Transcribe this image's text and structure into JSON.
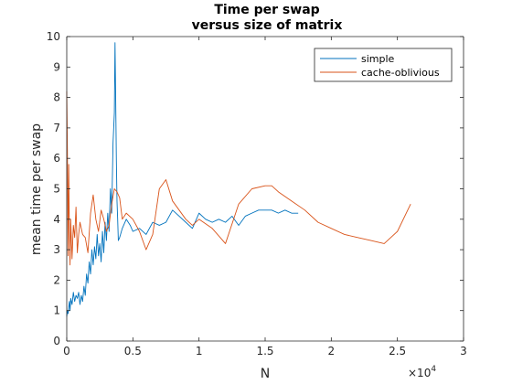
{
  "chart_data": {
    "type": "line",
    "title": [
      "Time per swap",
      "versus size of matrix"
    ],
    "xlabel": "N",
    "ylabel": "mean time per swap",
    "x_exponent_label": "×10",
    "x_exponent_power": "4",
    "xlim": [
      0,
      30000
    ],
    "ylim": [
      0,
      10
    ],
    "x_ticks": [
      0,
      5000,
      10000,
      15000,
      20000,
      25000,
      30000
    ],
    "x_tick_labels": [
      "0",
      "0.5",
      "1",
      "1.5",
      "2",
      "2.5",
      "3"
    ],
    "y_ticks": [
      0,
      1,
      2,
      3,
      4,
      5,
      6,
      7,
      8,
      9,
      10
    ],
    "y_tick_labels": [
      "0",
      "1",
      "2",
      "3",
      "4",
      "5",
      "6",
      "7",
      "8",
      "9",
      "10"
    ],
    "grid": false,
    "legend_position": "top-right",
    "series": [
      {
        "name": "simple",
        "color": "#0072bd",
        "x": [
          0,
          50,
          100,
          150,
          200,
          250,
          300,
          400,
          500,
          600,
          700,
          800,
          900,
          1000,
          1100,
          1200,
          1300,
          1400,
          1500,
          1600,
          1700,
          1800,
          1900,
          2000,
          2100,
          2200,
          2300,
          2400,
          2500,
          2600,
          2700,
          2800,
          2900,
          3000,
          3100,
          3200,
          3300,
          3400,
          3500,
          3600,
          3650,
          3700,
          3750,
          3800,
          3850,
          3900,
          4000,
          4200,
          4500,
          4800,
          5000,
          5500,
          6000,
          6500,
          7000,
          7500,
          8000,
          8500,
          9000,
          9500,
          10000,
          10500,
          11000,
          11500,
          12000,
          12500,
          13000,
          13500,
          14000,
          14500,
          15000,
          15500,
          16000,
          16500,
          17000,
          17500
        ],
        "y": [
          0.8,
          1.0,
          0.9,
          1.1,
          1.3,
          1.0,
          1.4,
          1.2,
          1.6,
          1.3,
          1.5,
          1.4,
          1.6,
          1.2,
          1.5,
          1.3,
          1.8,
          1.5,
          2.2,
          1.9,
          2.6,
          2.2,
          3.0,
          2.5,
          3.1,
          2.7,
          3.5,
          2.8,
          3.2,
          2.6,
          3.6,
          2.9,
          3.9,
          3.3,
          4.2,
          3.6,
          5.0,
          4.2,
          6.5,
          7.5,
          9.8,
          8.0,
          6.0,
          4.6,
          4.0,
          3.3,
          3.4,
          3.7,
          4.0,
          3.8,
          3.6,
          3.7,
          3.5,
          3.9,
          3.8,
          3.9,
          4.3,
          4.1,
          3.9,
          3.7,
          4.2,
          4.0,
          3.9,
          4.0,
          3.9,
          4.1,
          3.8,
          4.1,
          4.2,
          4.3,
          4.3,
          4.3,
          4.2,
          4.3,
          4.2,
          4.2
        ]
      },
      {
        "name": "cache-oblivious",
        "color": "#d95319",
        "x": [
          0,
          50,
          100,
          150,
          200,
          250,
          300,
          400,
          500,
          600,
          700,
          800,
          900,
          1000,
          1200,
          1400,
          1600,
          1800,
          2000,
          2200,
          2400,
          2600,
          2800,
          3000,
          3200,
          3400,
          3600,
          3800,
          4000,
          4200,
          4500,
          5000,
          5500,
          6000,
          6500,
          7000,
          7500,
          8000,
          8500,
          9000,
          9500,
          10000,
          11000,
          12000,
          13000,
          14000,
          15000,
          15500,
          16000,
          17000,
          18000,
          19000,
          20000,
          21000,
          22000,
          23000,
          24000,
          25000,
          26000
        ],
        "y": [
          8.2,
          6.3,
          2.8,
          5.8,
          3.6,
          2.5,
          4.0,
          2.7,
          3.8,
          3.4,
          4.4,
          2.9,
          3.5,
          3.9,
          3.5,
          3.4,
          2.9,
          4.2,
          4.8,
          4.0,
          3.6,
          4.3,
          4.0,
          3.6,
          3.8,
          4.5,
          5.0,
          4.9,
          4.7,
          4.0,
          4.2,
          4.0,
          3.6,
          3.0,
          3.5,
          5.0,
          5.3,
          4.6,
          4.3,
          4.0,
          3.8,
          4.0,
          3.7,
          3.2,
          4.5,
          5.0,
          5.1,
          5.1,
          4.9,
          4.6,
          4.3,
          3.9,
          3.7,
          3.5,
          3.4,
          3.3,
          3.2,
          3.6,
          4.5
        ]
      }
    ]
  }
}
